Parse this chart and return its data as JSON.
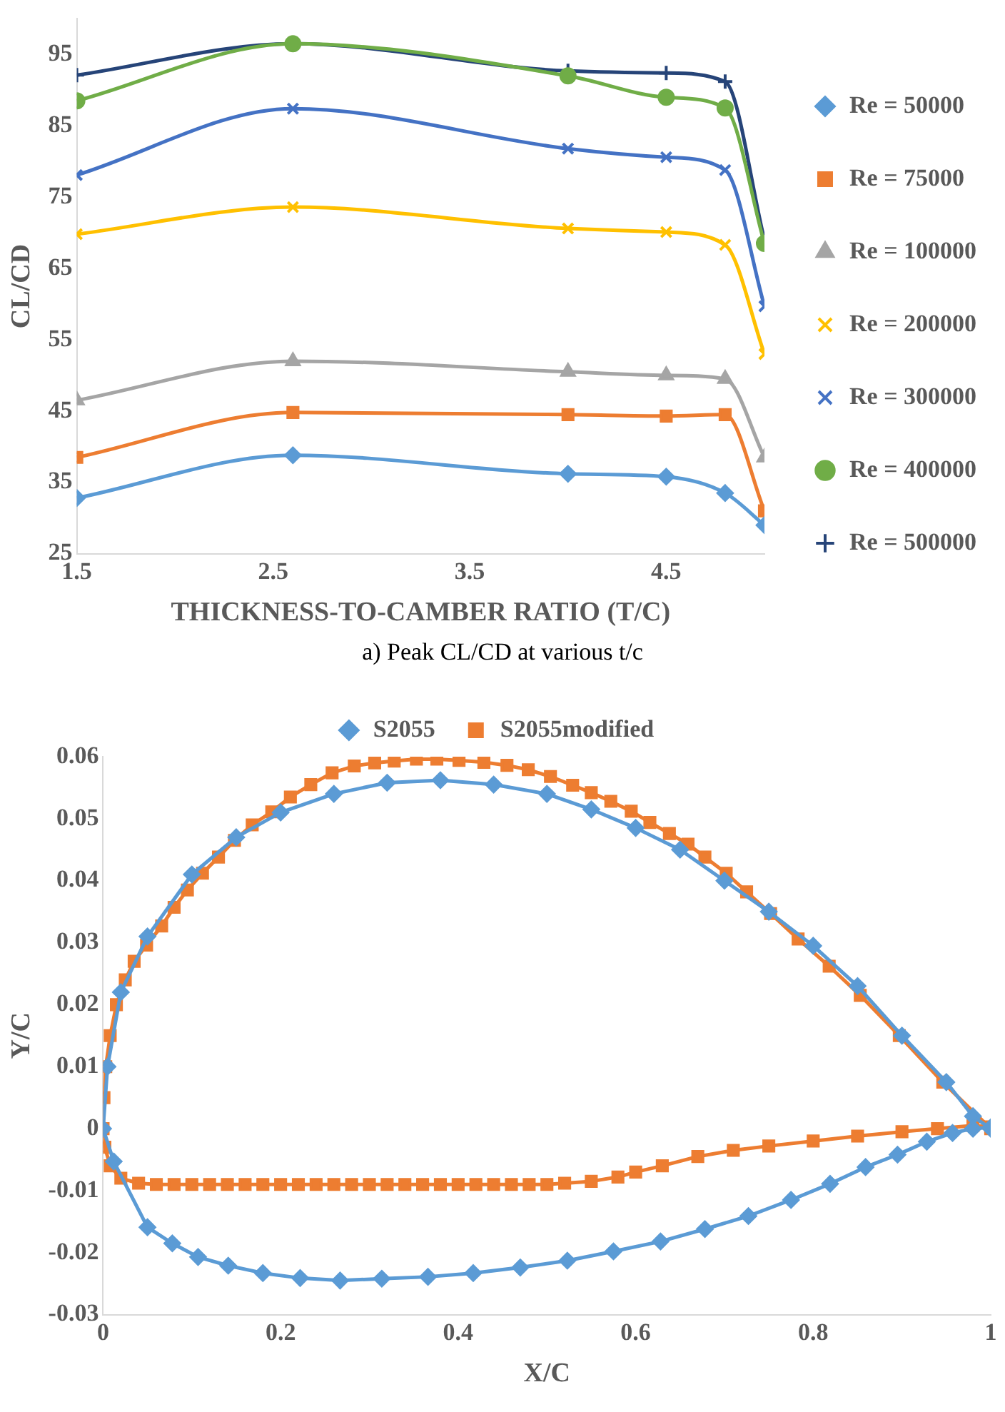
{
  "chart_data": [
    {
      "type": "line",
      "xlabel": "THICKNESS-TO-CAMBER RATIO (T/C)",
      "ylabel": "CL/CD",
      "annotations": [
        "a) Peak CL/CD at various t/c"
      ],
      "x": [
        1.5,
        2.6,
        4.0,
        4.5,
        4.8,
        5.0
      ],
      "xlim": [
        1.5,
        5.0
      ],
      "xticks": [
        1.5,
        2.5,
        3.5,
        4.5
      ],
      "ylim": [
        25,
        100
      ],
      "yticks": [
        25,
        35,
        45,
        55,
        65,
        75,
        85,
        95
      ],
      "grid": false,
      "legend": "right",
      "series": [
        {
          "name": "Re = 50000",
          "color": "#5b9bd5",
          "marker": "diamond",
          "values": [
            32.8,
            38.8,
            36.2,
            35.8,
            33.5,
            29
          ]
        },
        {
          "name": "Re = 75000",
          "color": "#ed7d31",
          "marker": "square",
          "values": [
            38.5,
            44.8,
            44.5,
            44.3,
            44.5,
            31
          ]
        },
        {
          "name": "Re = 100000",
          "color": "#a5a5a5",
          "marker": "triangle",
          "values": [
            46.5,
            52,
            50.5,
            50,
            49.5,
            38.5
          ]
        },
        {
          "name": "Re = 200000",
          "color": "#ffc000",
          "marker": "cross",
          "values": [
            69.8,
            73.6,
            70.6,
            70.1,
            68.3,
            53
          ]
        },
        {
          "name": "Re = 300000",
          "color": "#4472c4",
          "marker": "cross",
          "values": [
            78.1,
            87.4,
            81.8,
            80.6,
            78.8,
            59.7
          ]
        },
        {
          "name": "Re = 400000",
          "color": "#70ad47",
          "marker": "circle",
          "values": [
            88.5,
            96.5,
            92,
            89,
            87.5,
            68.5
          ]
        },
        {
          "name": "Re = 500000",
          "color": "#264478",
          "marker": "plus",
          "values": [
            92.1,
            96.5,
            92.7,
            92.4,
            91.2,
            69
          ]
        }
      ]
    },
    {
      "type": "line",
      "xlabel": "X/C",
      "ylabel": "Y/C",
      "xlim": [
        0,
        1
      ],
      "xticks": [
        0,
        0.2,
        0.4,
        0.6,
        0.8,
        1
      ],
      "ylim": [
        -0.03,
        0.06
      ],
      "yticks": [
        -0.03,
        -0.02,
        -0.01,
        0,
        0.01,
        0.02,
        0.03,
        0.04,
        0.05,
        0.06
      ],
      "grid": false,
      "legend": "top",
      "series": [
        {
          "name": "S2055",
          "color": "#5b9bd5",
          "marker": "diamond",
          "x": [
            1,
            0.98,
            0.95,
            0.9,
            0.85,
            0.8,
            0.75,
            0.7,
            0.65,
            0.6,
            0.55,
            0.5,
            0.44,
            0.38,
            0.32,
            0.26,
            0.2,
            0.15,
            0.1,
            0.05,
            0.02,
            0.005,
            0,
            0.012,
            0.05,
            0.078,
            0.107,
            0.141,
            0.18,
            0.222,
            0.267,
            0.314,
            0.366,
            0.417,
            0.47,
            0.523,
            0.575,
            0.628,
            0.678,
            0.727,
            0.775,
            0.819,
            0.859,
            0.895,
            0.928,
            0.957,
            0.98,
            1
          ],
          "values": [
            0,
            0.002,
            0.0075,
            0.015,
            0.023,
            0.0295,
            0.035,
            0.04,
            0.045,
            0.0485,
            0.0515,
            0.054,
            0.0555,
            0.0562,
            0.0558,
            0.054,
            0.051,
            0.047,
            0.041,
            0.031,
            0.022,
            0.01,
            0,
            -0.0053,
            -0.0159,
            -0.0185,
            -0.0207,
            -0.0221,
            -0.0233,
            -0.0241,
            -0.0245,
            -0.0242,
            -0.0239,
            -0.0233,
            -0.0224,
            -0.0213,
            -0.0198,
            -0.0182,
            -0.0162,
            -0.0141,
            -0.0115,
            -0.0089,
            -0.0062,
            -0.0042,
            -0.0021,
            -0.0007,
            0,
            0.0002
          ]
        },
        {
          "name": "S2055modified",
          "color": "#ed7d31",
          "marker": "square",
          "x": [
            1,
            0.946,
            0.897,
            0.853,
            0.818,
            0.783,
            0.752,
            0.725,
            0.702,
            0.678,
            0.659,
            0.638,
            0.616,
            0.595,
            0.572,
            0.55,
            0.529,
            0.504,
            0.479,
            0.455,
            0.429,
            0.401,
            0.376,
            0.353,
            0.328,
            0.306,
            0.283,
            0.258,
            0.234,
            0.211,
            0.19,
            0.168,
            0.148,
            0.13,
            0.112,
            0.095,
            0.08,
            0.066,
            0.049,
            0.035,
            0.025,
            0.015,
            0.008,
            0.003,
            0.001,
            0,
            0.002,
            0.008,
            0.02,
            0.04,
            0.06,
            0.08,
            0.1,
            0.12,
            0.14,
            0.16,
            0.18,
            0.2,
            0.22,
            0.24,
            0.26,
            0.28,
            0.3,
            0.32,
            0.34,
            0.36,
            0.38,
            0.4,
            0.42,
            0.44,
            0.46,
            0.48,
            0.5,
            0.52,
            0.55,
            0.58,
            0.6,
            0.63,
            0.67,
            0.71,
            0.75,
            0.8,
            0.85,
            0.9,
            0.94,
            0.98,
            1
          ],
          "values": [
            0,
            0.0075,
            0.015,
            0.0215,
            0.0262,
            0.0306,
            0.0347,
            0.0382,
            0.0412,
            0.0438,
            0.0459,
            0.0476,
            0.0494,
            0.0512,
            0.0528,
            0.0542,
            0.0554,
            0.0568,
            0.0579,
            0.0586,
            0.0591,
            0.0594,
            0.0596,
            0.0596,
            0.0593,
            0.059,
            0.0585,
            0.0574,
            0.0555,
            0.0535,
            0.0511,
            0.049,
            0.0465,
            0.0438,
            0.0412,
            0.0385,
            0.0357,
            0.0327,
            0.0296,
            0.027,
            0.024,
            0.02,
            0.015,
            0.01,
            0.005,
            0,
            -0.003,
            -0.006,
            -0.008,
            -0.0088,
            -0.009,
            -0.009,
            -0.009,
            -0.009,
            -0.009,
            -0.009,
            -0.009,
            -0.009,
            -0.009,
            -0.009,
            -0.009,
            -0.009,
            -0.009,
            -0.009,
            -0.009,
            -0.009,
            -0.009,
            -0.009,
            -0.009,
            -0.009,
            -0.009,
            -0.009,
            -0.009,
            -0.0088,
            -0.0085,
            -0.0078,
            -0.007,
            -0.006,
            -0.0045,
            -0.0035,
            -0.0028,
            -0.002,
            -0.0012,
            -0.0005,
            0,
            0.0005,
            0.0003
          ]
        }
      ]
    }
  ]
}
